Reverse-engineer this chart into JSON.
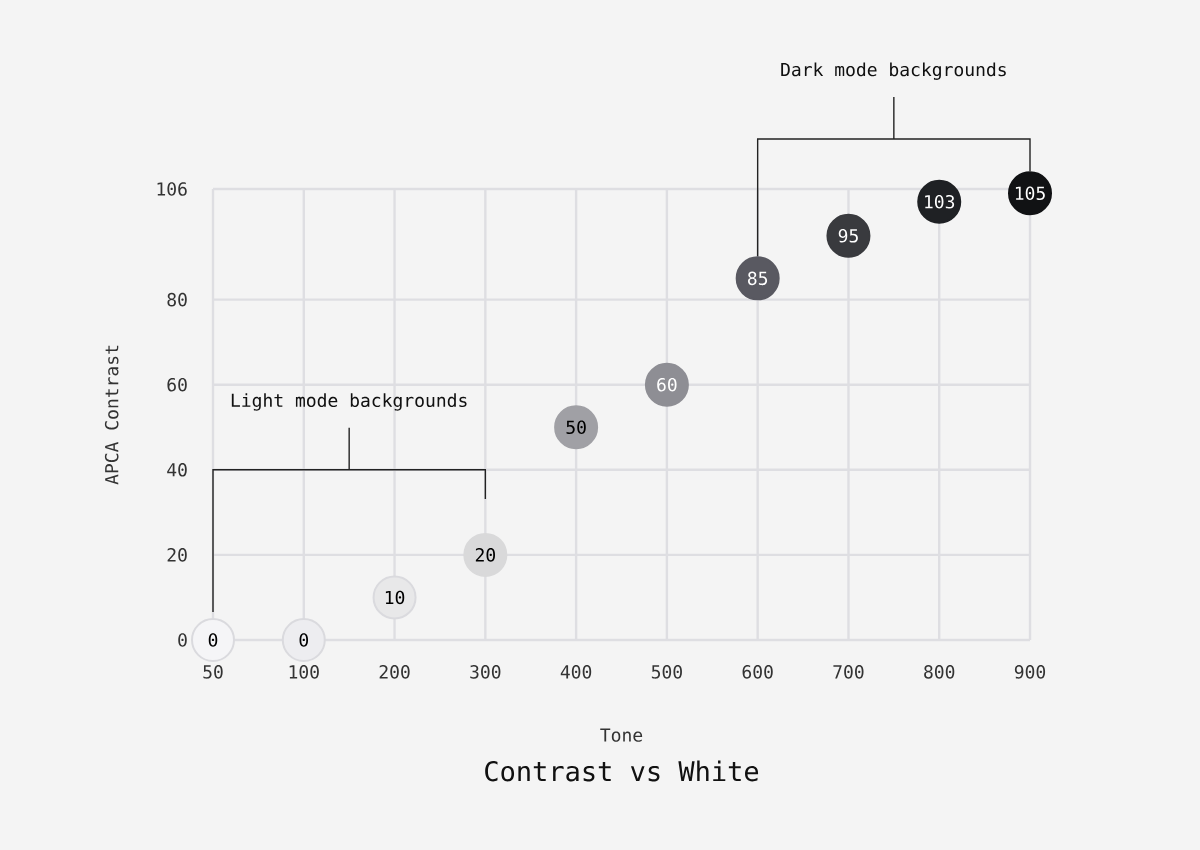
{
  "chart_data": {
    "type": "scatter",
    "title": "Contrast vs White",
    "xlabel": "Tone",
    "ylabel": "APCA Contrast",
    "categories": [
      "50",
      "100",
      "200",
      "300",
      "400",
      "500",
      "600",
      "700",
      "800",
      "900"
    ],
    "values": [
      0,
      0,
      10,
      20,
      50,
      60,
      85,
      95,
      103,
      105
    ],
    "colors": [
      "#f5f5f7",
      "#ededf0",
      "#e8e8e9",
      "#d9d9da",
      "#a0a0a5",
      "#8e8e94",
      "#595961",
      "#393a3e",
      "#1f2124",
      "#111214"
    ],
    "ylim": [
      0,
      106
    ],
    "yticks": [
      0,
      20,
      40,
      60,
      80,
      106
    ],
    "grid": true,
    "marker": "circle",
    "data_labels": true,
    "annotations": [
      "Light mode backgrounds",
      "Dark mode backgrounds"
    ]
  }
}
